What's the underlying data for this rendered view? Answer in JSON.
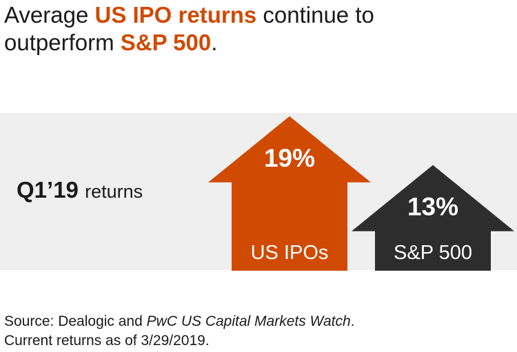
{
  "title": {
    "p1": "Average ",
    "h1": "US IPO returns",
    "p2": " continue to",
    "p3": "outperform ",
    "h2": "S&P 500",
    "p4": "."
  },
  "period": {
    "quarter": "Q1’19",
    "label": "returns"
  },
  "source": {
    "p1": "Source: Dealogic and ",
    "italic": "PwC US Capital Markets Watch",
    "p2": ".",
    "line2": "Current returns as of 3/29/2019."
  },
  "colors": {
    "accent": "#d04a02",
    "dark": "#2d2d2d",
    "panel": "#efefef"
  },
  "chart_data": {
    "type": "bar",
    "title": "Average US IPO returns continue to outperform S&P 500.",
    "categories": [
      "US IPOs",
      "S&P 500"
    ],
    "values": [
      19,
      13
    ],
    "value_labels": [
      "19%",
      "13%"
    ],
    "unit": "%",
    "period": "Q1’19 returns",
    "ylim": [
      0,
      20
    ],
    "colors": [
      "#d04a02",
      "#2d2d2d"
    ]
  }
}
